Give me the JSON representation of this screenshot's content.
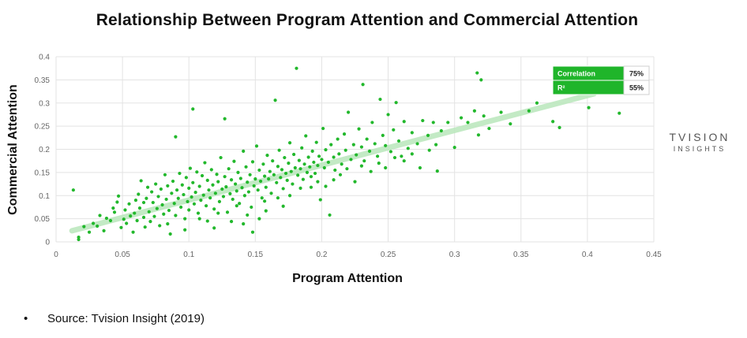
{
  "chart_data": {
    "type": "scatter",
    "title": "Relationship Between Program Attention and Commercial Attention",
    "xlabel": "Program Attention",
    "ylabel": "Commercial Attention",
    "xlim": [
      0,
      0.45
    ],
    "ylim": [
      0,
      0.4
    ],
    "xticks": [
      "0",
      "0.05",
      "0.1",
      "0.15",
      "0.2",
      "0.25",
      "0.3",
      "0.35",
      "0.4",
      "0.45"
    ],
    "yticks": [
      "0",
      "0.05",
      "0.1",
      "0.15",
      "0.2",
      "0.25",
      "0.3",
      "0.35",
      "0.4"
    ],
    "grid": true,
    "point_color": "#22b82c",
    "trendline_color": "#bde8bf",
    "trendline": {
      "x": [
        0.012,
        0.405
      ],
      "y": [
        0.024,
        0.32
      ]
    },
    "stats_box": [
      {
        "label": "Correlation",
        "value": "75%"
      },
      {
        "label": "R²",
        "value": "55%"
      }
    ],
    "points": [
      [
        0.013,
        0.112
      ],
      [
        0.017,
        0.01
      ],
      [
        0.017,
        0.005
      ],
      [
        0.021,
        0.033
      ],
      [
        0.025,
        0.021
      ],
      [
        0.028,
        0.04
      ],
      [
        0.031,
        0.034
      ],
      [
        0.033,
        0.057
      ],
      [
        0.036,
        0.024
      ],
      [
        0.038,
        0.051
      ],
      [
        0.041,
        0.046
      ],
      [
        0.043,
        0.073
      ],
      [
        0.044,
        0.064
      ],
      [
        0.046,
        0.086
      ],
      [
        0.047,
        0.099
      ],
      [
        0.049,
        0.031
      ],
      [
        0.051,
        0.049
      ],
      [
        0.052,
        0.069
      ],
      [
        0.053,
        0.04
      ],
      [
        0.055,
        0.082
      ],
      [
        0.056,
        0.056
      ],
      [
        0.058,
        0.021
      ],
      [
        0.059,
        0.062
      ],
      [
        0.06,
        0.09
      ],
      [
        0.061,
        0.046
      ],
      [
        0.062,
        0.103
      ],
      [
        0.063,
        0.073
      ],
      [
        0.064,
        0.132
      ],
      [
        0.066,
        0.053
      ],
      [
        0.067,
        0.032
      ],
      [
        0.068,
        0.094
      ],
      [
        0.069,
        0.118
      ],
      [
        0.07,
        0.065
      ],
      [
        0.071,
        0.044
      ],
      [
        0.072,
        0.108
      ],
      [
        0.073,
        0.085
      ],
      [
        0.074,
        0.055
      ],
      [
        0.075,
        0.125
      ],
      [
        0.076,
        0.072
      ],
      [
        0.077,
        0.098
      ],
      [
        0.078,
        0.035
      ],
      [
        0.079,
        0.114
      ],
      [
        0.08,
        0.08
      ],
      [
        0.081,
        0.06
      ],
      [
        0.082,
        0.145
      ],
      [
        0.083,
        0.092
      ],
      [
        0.084,
        0.121
      ],
      [
        0.085,
        0.068
      ],
      [
        0.086,
        0.017
      ],
      [
        0.087,
        0.105
      ],
      [
        0.088,
        0.131
      ],
      [
        0.089,
        0.083
      ],
      [
        0.09,
        0.227
      ],
      [
        0.09,
        0.057
      ],
      [
        0.091,
        0.112
      ],
      [
        0.092,
        0.094
      ],
      [
        0.093,
        0.148
      ],
      [
        0.094,
        0.075
      ],
      [
        0.095,
        0.123
      ],
      [
        0.096,
        0.102
      ],
      [
        0.097,
        0.05
      ],
      [
        0.098,
        0.139
      ],
      [
        0.099,
        0.087
      ],
      [
        0.1,
        0.116
      ],
      [
        0.1,
        0.069
      ],
      [
        0.101,
        0.159
      ],
      [
        0.102,
        0.097
      ],
      [
        0.103,
        0.287
      ],
      [
        0.103,
        0.128
      ],
      [
        0.104,
        0.082
      ],
      [
        0.105,
        0.107
      ],
      [
        0.106,
        0.151
      ],
      [
        0.107,
        0.062
      ],
      [
        0.108,
        0.12
      ],
      [
        0.109,
        0.09
      ],
      [
        0.11,
        0.143
      ],
      [
        0.111,
        0.101
      ],
      [
        0.112,
        0.171
      ],
      [
        0.113,
        0.078
      ],
      [
        0.114,
        0.133
      ],
      [
        0.115,
        0.112
      ],
      [
        0.116,
        0.095
      ],
      [
        0.117,
        0.156
      ],
      [
        0.118,
        0.123
      ],
      [
        0.119,
        0.071
      ],
      [
        0.12,
        0.105
      ],
      [
        0.121,
        0.146
      ],
      [
        0.122,
        0.13
      ],
      [
        0.123,
        0.087
      ],
      [
        0.124,
        0.182
      ],
      [
        0.125,
        0.114
      ],
      [
        0.126,
        0.098
      ],
      [
        0.127,
        0.266
      ],
      [
        0.127,
        0.141
      ],
      [
        0.128,
        0.119
      ],
      [
        0.129,
        0.064
      ],
      [
        0.13,
        0.158
      ],
      [
        0.131,
        0.104
      ],
      [
        0.132,
        0.134
      ],
      [
        0.133,
        0.092
      ],
      [
        0.134,
        0.174
      ],
      [
        0.135,
        0.125
      ],
      [
        0.136,
        0.11
      ],
      [
        0.137,
        0.15
      ],
      [
        0.138,
        0.083
      ],
      [
        0.139,
        0.137
      ],
      [
        0.14,
        0.117
      ],
      [
        0.141,
        0.196
      ],
      [
        0.142,
        0.1
      ],
      [
        0.143,
        0.162
      ],
      [
        0.144,
        0.129
      ],
      [
        0.145,
        0.108
      ],
      [
        0.146,
        0.145
      ],
      [
        0.147,
        0.075
      ],
      [
        0.148,
        0.173
      ],
      [
        0.149,
        0.121
      ],
      [
        0.15,
        0.136
      ],
      [
        0.151,
        0.207
      ],
      [
        0.152,
        0.112
      ],
      [
        0.153,
        0.155
      ],
      [
        0.154,
        0.131
      ],
      [
        0.155,
        0.095
      ],
      [
        0.156,
        0.168
      ],
      [
        0.157,
        0.142
      ],
      [
        0.158,
        0.118
      ],
      [
        0.159,
        0.187
      ],
      [
        0.16,
        0.136
      ],
      [
        0.161,
        0.152
      ],
      [
        0.162,
        0.105
      ],
      [
        0.163,
        0.175
      ],
      [
        0.164,
        0.145
      ],
      [
        0.165,
        0.306
      ],
      [
        0.166,
        0.128
      ],
      [
        0.167,
        0.163
      ],
      [
        0.168,
        0.198
      ],
      [
        0.169,
        0.139
      ],
      [
        0.17,
        0.156
      ],
      [
        0.171,
        0.115
      ],
      [
        0.172,
        0.182
      ],
      [
        0.173,
        0.148
      ],
      [
        0.174,
        0.133
      ],
      [
        0.175,
        0.17
      ],
      [
        0.176,
        0.214
      ],
      [
        0.177,
        0.152
      ],
      [
        0.178,
        0.125
      ],
      [
        0.179,
        0.189
      ],
      [
        0.18,
        0.16
      ],
      [
        0.181,
        0.375
      ],
      [
        0.182,
        0.144
      ],
      [
        0.183,
        0.176
      ],
      [
        0.184,
        0.158
      ],
      [
        0.185,
        0.203
      ],
      [
        0.186,
        0.135
      ],
      [
        0.187,
        0.168
      ],
      [
        0.188,
        0.229
      ],
      [
        0.189,
        0.15
      ],
      [
        0.19,
        0.183
      ],
      [
        0.191,
        0.162
      ],
      [
        0.192,
        0.118
      ],
      [
        0.193,
        0.196
      ],
      [
        0.194,
        0.172
      ],
      [
        0.195,
        0.148
      ],
      [
        0.196,
        0.215
      ],
      [
        0.197,
        0.165
      ],
      [
        0.198,
        0.185
      ],
      [
        0.199,
        0.091
      ],
      [
        0.2,
        0.178
      ],
      [
        0.201,
        0.245
      ],
      [
        0.202,
        0.16
      ],
      [
        0.203,
        0.199
      ],
      [
        0.205,
        0.172
      ],
      [
        0.206,
        0.058
      ],
      [
        0.207,
        0.21
      ],
      [
        0.209,
        0.183
      ],
      [
        0.21,
        0.155
      ],
      [
        0.212,
        0.222
      ],
      [
        0.213,
        0.19
      ],
      [
        0.215,
        0.168
      ],
      [
        0.217,
        0.233
      ],
      [
        0.218,
        0.198
      ],
      [
        0.22,
        0.28
      ],
      [
        0.222,
        0.178
      ],
      [
        0.224,
        0.21
      ],
      [
        0.226,
        0.188
      ],
      [
        0.228,
        0.244
      ],
      [
        0.23,
        0.205
      ],
      [
        0.231,
        0.34
      ],
      [
        0.232,
        0.175
      ],
      [
        0.234,
        0.222
      ],
      [
        0.236,
        0.196
      ],
      [
        0.238,
        0.258
      ],
      [
        0.24,
        0.212
      ],
      [
        0.242,
        0.185
      ],
      [
        0.244,
        0.308
      ],
      [
        0.246,
        0.23
      ],
      [
        0.248,
        0.208
      ],
      [
        0.25,
        0.275
      ],
      [
        0.252,
        0.195
      ],
      [
        0.254,
        0.242
      ],
      [
        0.256,
        0.301
      ],
      [
        0.258,
        0.218
      ],
      [
        0.26,
        0.185
      ],
      [
        0.262,
        0.26
      ],
      [
        0.265,
        0.202
      ],
      [
        0.268,
        0.236
      ],
      [
        0.272,
        0.212
      ],
      [
        0.276,
        0.262
      ],
      [
        0.28,
        0.23
      ],
      [
        0.284,
        0.258
      ],
      [
        0.287,
        0.153
      ],
      [
        0.29,
        0.24
      ],
      [
        0.295,
        0.258
      ],
      [
        0.3,
        0.204
      ],
      [
        0.305,
        0.268
      ],
      [
        0.31,
        0.258
      ],
      [
        0.315,
        0.283
      ],
      [
        0.317,
        0.365
      ],
      [
        0.318,
        0.231
      ],
      [
        0.32,
        0.35
      ],
      [
        0.322,
        0.272
      ],
      [
        0.326,
        0.245
      ],
      [
        0.335,
        0.28
      ],
      [
        0.342,
        0.255
      ],
      [
        0.356,
        0.283
      ],
      [
        0.362,
        0.3
      ],
      [
        0.374,
        0.26
      ],
      [
        0.379,
        0.247
      ],
      [
        0.401,
        0.29
      ],
      [
        0.424,
        0.278
      ],
      [
        0.114,
        0.045
      ],
      [
        0.119,
        0.03
      ],
      [
        0.132,
        0.044
      ],
      [
        0.141,
        0.039
      ],
      [
        0.148,
        0.021
      ],
      [
        0.153,
        0.05
      ],
      [
        0.158,
        0.067
      ],
      [
        0.066,
        0.085
      ],
      [
        0.084,
        0.039
      ],
      [
        0.097,
        0.026
      ],
      [
        0.108,
        0.05
      ],
      [
        0.122,
        0.062
      ],
      [
        0.136,
        0.078
      ],
      [
        0.144,
        0.058
      ],
      [
        0.157,
        0.088
      ],
      [
        0.167,
        0.095
      ],
      [
        0.171,
        0.077
      ],
      [
        0.176,
        0.1
      ],
      [
        0.184,
        0.116
      ],
      [
        0.192,
        0.141
      ],
      [
        0.197,
        0.13
      ],
      [
        0.203,
        0.12
      ],
      [
        0.209,
        0.134
      ],
      [
        0.214,
        0.145
      ],
      [
        0.219,
        0.158
      ],
      [
        0.225,
        0.13
      ],
      [
        0.23,
        0.164
      ],
      [
        0.237,
        0.152
      ],
      [
        0.243,
        0.17
      ],
      [
        0.248,
        0.16
      ],
      [
        0.255,
        0.182
      ],
      [
        0.262,
        0.175
      ],
      [
        0.268,
        0.19
      ],
      [
        0.274,
        0.16
      ],
      [
        0.281,
        0.198
      ],
      [
        0.286,
        0.21
      ]
    ]
  },
  "brand": {
    "line1": "TVISION",
    "line2": "INSIGHTS"
  },
  "source": {
    "text": "Source: Tvision Insight (2019)"
  }
}
